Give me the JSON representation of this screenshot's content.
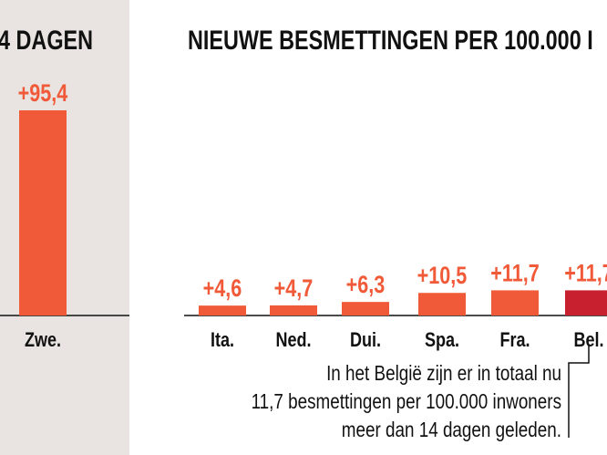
{
  "headers": {
    "left_title": "4 DAGEN",
    "right_title": "NIEUWE BESMETTINGEN PER 100.000 I"
  },
  "annotation": {
    "line1": "In het België zijn er in totaal nu",
    "line2": "11,7 besmettingen per 100.000 inwoners",
    "line3": "meer dan 14 dagen geleden."
  },
  "colors": {
    "bar": "#f15a38",
    "highlight": "#c8202f",
    "label": "#f15a38",
    "panel": "#e9e4e1",
    "text": "#111111"
  },
  "chart_data": {
    "type": "bar",
    "title": "NIEUWE BESMETTINGEN PER 100.000 I",
    "categories": [
      "Zwe.",
      "Ita.",
      "Ned.",
      "Dui.",
      "Spa.",
      "Fra.",
      "Bel."
    ],
    "values": [
      95.4,
      4.6,
      4.7,
      6.3,
      10.5,
      11.7,
      11.7
    ],
    "labels": [
      "+95,4",
      "+4,6",
      "+4,7",
      "+6,3",
      "+10,5",
      "+11,7",
      "+11,7"
    ],
    "highlight": "Bel.",
    "xlabel": "",
    "ylabel": "",
    "ylim": [
      0,
      100
    ],
    "grid": false,
    "legend": "none"
  }
}
